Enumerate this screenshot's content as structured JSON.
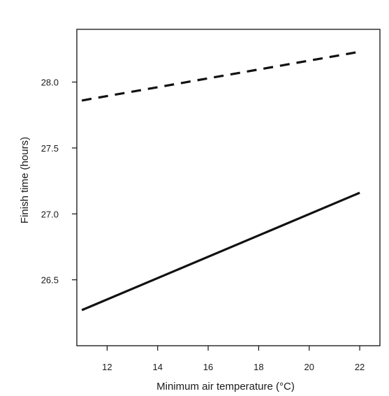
{
  "chart_data": {
    "type": "line",
    "title": "",
    "xlabel": "Minimum air temperature (°C)",
    "ylabel": "Finish time (hours)",
    "xlim": [
      10.8,
      22.8
    ],
    "ylim": [
      26.0,
      28.4
    ],
    "x_ticks": [
      12,
      14,
      16,
      18,
      20,
      22
    ],
    "y_ticks": [
      26.5,
      27.0,
      27.5,
      28.0
    ],
    "x_tick_labels": [
      "12",
      "14",
      "16",
      "18",
      "20",
      "22"
    ],
    "y_tick_labels": [
      "26.5",
      "27.0",
      "27.5",
      "28.0"
    ],
    "grid": false,
    "legend": "none",
    "series": [
      {
        "style": "dashed",
        "color": "#111111",
        "x": [
          11,
          22
        ],
        "y": [
          27.86,
          28.23
        ]
      },
      {
        "style": "solid",
        "color": "#111111",
        "x": [
          11,
          22
        ],
        "y": [
          26.27,
          27.16
        ]
      }
    ]
  }
}
